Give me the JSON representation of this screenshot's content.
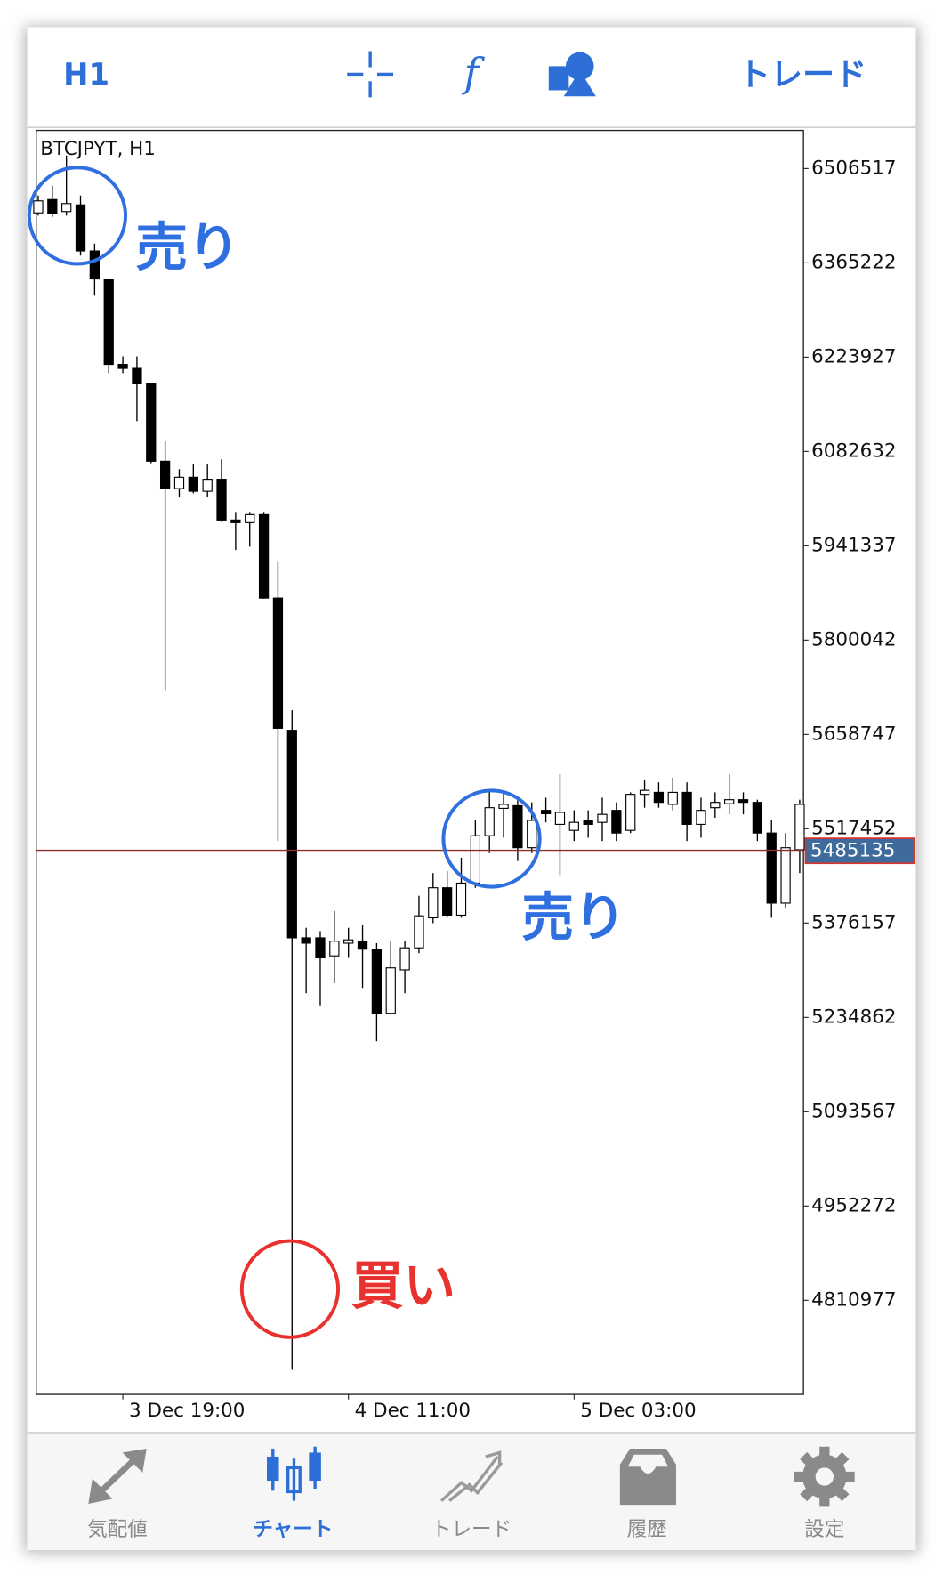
{
  "toolbar": {
    "timeframe": "H1",
    "trade": "トレード"
  },
  "chart_data": {
    "type": "candlestick",
    "title": "BTCJPYT, H1",
    "categories": [
      null,
      null,
      null,
      null,
      null,
      null,
      "3 Dec 19:00",
      null,
      null,
      null,
      null,
      null,
      null,
      null,
      null,
      null,
      null,
      null,
      null,
      null,
      null,
      null,
      "4 Dec 11:00",
      null,
      null,
      null,
      null,
      null,
      null,
      null,
      null,
      null,
      null,
      null,
      null,
      null,
      null,
      null,
      "5 Dec 03:00",
      null,
      null,
      null,
      null,
      null,
      null,
      null,
      null,
      null,
      null,
      null,
      null,
      null,
      null,
      null,
      null
    ],
    "open": [
      6440000,
      6460000,
      6442000,
      6452000,
      6383000,
      6341000,
      6213000,
      6207000,
      6185000,
      6068000,
      6027000,
      6044000,
      6023000,
      6041000,
      5980000,
      5976000,
      5988000,
      5863000,
      5665000,
      5354000,
      5354000,
      5327000,
      5346000,
      5349000,
      5337000,
      5241000,
      5306000,
      5339000,
      5384000,
      5429000,
      5388000,
      5436000,
      5507000,
      5548000,
      5552000,
      5489000,
      5545000,
      5524000,
      5515000,
      5530000,
      5527000,
      5545000,
      5515000,
      5569000,
      5572000,
      5554000,
      5572000,
      5524000,
      5549000,
      5555000,
      5561000,
      5557000,
      5511000,
      5406000,
      5486000
    ],
    "high": [
      6466000,
      6481000,
      6526000,
      6466000,
      6394000,
      6341000,
      6225000,
      6225000,
      6185000,
      6098000,
      6056000,
      6063000,
      6063000,
      6071000,
      5992000,
      5992000,
      5992000,
      5917000,
      5695000,
      5369000,
      5364000,
      5394000,
      5369000,
      5373000,
      5346000,
      5349000,
      5349000,
      5417000,
      5451000,
      5454000,
      5474000,
      5530000,
      5572000,
      5572000,
      5560000,
      5557000,
      5564000,
      5599000,
      5545000,
      5545000,
      5564000,
      5557000,
      5572000,
      5590000,
      5587000,
      5594000,
      5587000,
      5564000,
      5572000,
      5599000,
      5572000,
      5561000,
      5530000,
      5511000,
      5561000
    ],
    "low": [
      6436000,
      6434000,
      6436000,
      6376000,
      6316000,
      6200000,
      6200000,
      6128000,
      6065000,
      5725000,
      6015000,
      6020000,
      6015000,
      5977000,
      5935000,
      5940000,
      5862000,
      5499000,
      4707000,
      5271000,
      5253000,
      5286000,
      5324000,
      5279000,
      5199000,
      5241000,
      5271000,
      5331000,
      5376000,
      5384000,
      5384000,
      5429000,
      5481000,
      5504000,
      5469000,
      5481000,
      5527000,
      5448000,
      5499000,
      5504000,
      5499000,
      5499000,
      5511000,
      5549000,
      5549000,
      5545000,
      5499000,
      5504000,
      5534000,
      5539000,
      5539000,
      5499000,
      5384000,
      5399000,
      5451000
    ],
    "close": [
      6458000,
      6439000,
      6454000,
      6383000,
      6341000,
      6213000,
      6207000,
      6185000,
      6068000,
      6027000,
      6044000,
      6023000,
      6041000,
      5980000,
      5976000,
      5988000,
      5863000,
      5668000,
      5354000,
      5346000,
      5324000,
      5349000,
      5351000,
      5337000,
      5241000,
      5309000,
      5339000,
      5387000,
      5429000,
      5388000,
      5436000,
      5507000,
      5549000,
      5554000,
      5489000,
      5530000,
      5540000,
      5542000,
      5527000,
      5524000,
      5539000,
      5511000,
      5569000,
      5575000,
      5557000,
      5572000,
      5524000,
      5545000,
      5557000,
      5561000,
      5557000,
      5511000,
      5406000,
      5489000,
      5554000
    ],
    "ylim": [
      4670000,
      6563600
    ],
    "yticks": [
      6506517,
      6365222,
      6223927,
      6082632,
      5941337,
      5800042,
      5658747,
      5517452,
      5376157,
      5234862,
      5093567,
      4952272,
      4810977
    ],
    "current_price": 5485135,
    "up_color": "#ffffff",
    "down_color": "#000000",
    "price_line_color": "#8b3030",
    "annotations": [
      {
        "text": "売り",
        "color": "#2f6fe0"
      },
      {
        "text": "売り",
        "color": "#2f6fe0"
      },
      {
        "text": "買い",
        "color": "#e8322f"
      }
    ]
  },
  "tabs": [
    "気配値",
    "チャート",
    "トレード",
    "履歴",
    "設定"
  ]
}
